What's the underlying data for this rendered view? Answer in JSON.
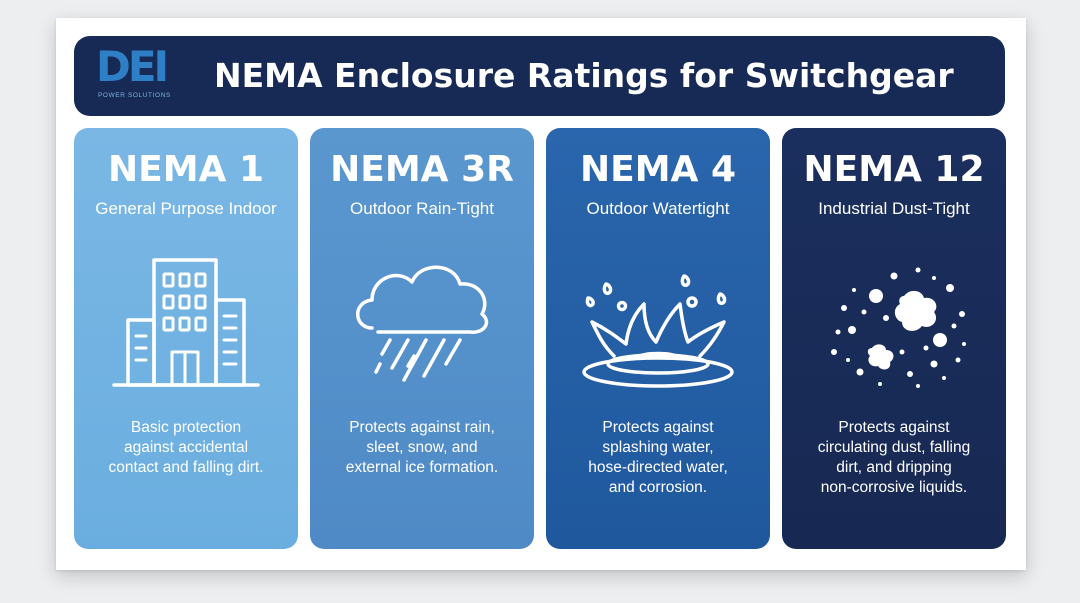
{
  "header": {
    "logo_text": "DEI",
    "logo_subtext": "POWER SOLUTIONS",
    "title": "NEMA Enclosure Ratings for Switchgear"
  },
  "colors": {
    "header_bg": "#172a55",
    "panel_1": "#74b3e3",
    "panel_2": "#5591ca",
    "panel_3": "#2560a6",
    "panel_4": "#192c58",
    "logo_blue": "#2f7fc6"
  },
  "panels": [
    {
      "title": "NEMA 1",
      "subtitle": "General Purpose Indoor",
      "icon": "office-building-icon",
      "description": [
        "Basic protection",
        "against accidental",
        "contact and falling dirt."
      ]
    },
    {
      "title": "NEMA 3R",
      "subtitle": "Outdoor Rain-Tight",
      "icon": "rain-cloud-icon",
      "description": [
        "Protects against rain,",
        "sleet, snow, and",
        "external ice formation."
      ]
    },
    {
      "title": "NEMA 4",
      "subtitle": "Outdoor Watertight",
      "icon": "water-splash-icon",
      "description": [
        "Protects against",
        "splashing water,",
        "hose-directed water,",
        "and corrosion."
      ]
    },
    {
      "title": "NEMA 12",
      "subtitle": "Industrial Dust-Tight",
      "icon": "dust-particles-icon",
      "description": [
        "Protects against",
        "circulating dust, falling",
        "dirt, and dripping",
        "non-corrosive liquids."
      ]
    }
  ]
}
